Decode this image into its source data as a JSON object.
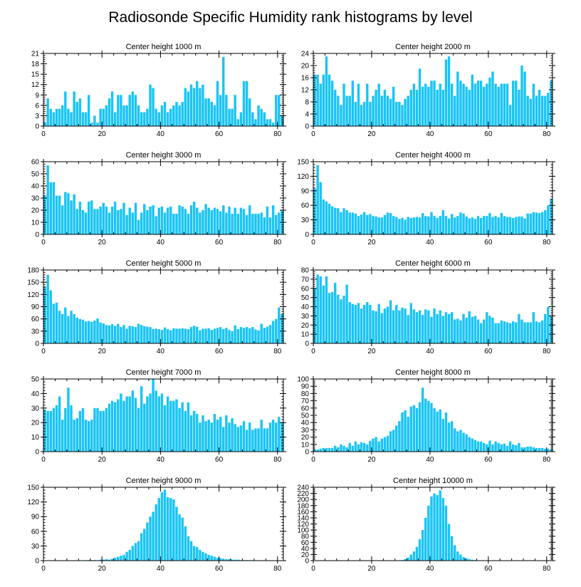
{
  "title": "Radiosonde Specific Humidity rank histograms by level",
  "bar_color": "#19c4f5",
  "chart_data": [
    {
      "type": "bar",
      "title": "Center height 1000 m",
      "xlim": [
        0,
        82
      ],
      "ylim": [
        0,
        21
      ],
      "xticks": [
        0,
        20,
        40,
        60,
        80
      ],
      "yticks": [
        0,
        3,
        6,
        9,
        12,
        15,
        18,
        21
      ],
      "values": [
        1,
        8,
        5,
        4,
        5,
        5,
        6,
        10,
        5,
        4,
        10,
        7,
        8,
        4,
        4,
        9,
        1,
        3,
        1,
        5,
        5,
        6,
        8,
        10,
        4,
        9,
        9,
        6,
        6,
        9,
        10,
        9,
        6,
        4,
        4,
        5,
        12,
        11,
        5,
        4,
        6,
        7,
        4,
        5,
        6,
        7,
        6,
        7,
        11,
        10,
        12,
        11,
        13,
        11,
        12,
        8,
        8,
        7,
        6,
        13,
        9,
        20,
        9,
        5,
        5,
        9,
        2,
        4,
        13,
        13,
        8,
        4,
        2,
        6,
        5,
        4,
        2,
        2,
        1,
        9,
        9,
        3
      ]
    },
    {
      "type": "bar",
      "title": "Center height 2000 m",
      "xlim": [
        0,
        82
      ],
      "ylim": [
        0,
        24
      ],
      "xticks": [
        0,
        20,
        40,
        60,
        80
      ],
      "yticks": [
        0,
        4,
        8,
        12,
        16,
        20,
        24
      ],
      "values": [
        17,
        17,
        14,
        17,
        23,
        17,
        15,
        12,
        10,
        7,
        14,
        10,
        10,
        15,
        8,
        14,
        7,
        8,
        14,
        8,
        10,
        12,
        14,
        10,
        12,
        10,
        9,
        13,
        8,
        8,
        7,
        9,
        10,
        12,
        14,
        12,
        19,
        13,
        14,
        13,
        15,
        15,
        12,
        14,
        12,
        22,
        23,
        14,
        10,
        18,
        15,
        14,
        13,
        12,
        17,
        14,
        15,
        15,
        13,
        14,
        16,
        18,
        14,
        13,
        14,
        14,
        14,
        7,
        15,
        15,
        12,
        20,
        18,
        10,
        9,
        14,
        10,
        12,
        10,
        10,
        11,
        15
      ]
    },
    {
      "type": "bar",
      "title": "Center height 3000 m",
      "xlim": [
        0,
        82
      ],
      "ylim": [
        0,
        60
      ],
      "xticks": [
        0,
        20,
        40,
        60,
        80
      ],
      "yticks": [
        0,
        10,
        20,
        30,
        40,
        50,
        60
      ],
      "values": [
        32,
        57,
        43,
        43,
        32,
        32,
        24,
        35,
        34,
        28,
        33,
        21,
        27,
        20,
        18,
        27,
        28,
        21,
        21,
        23,
        26,
        23,
        18,
        23,
        27,
        20,
        21,
        26,
        16,
        22,
        18,
        26,
        12,
        18,
        25,
        20,
        23,
        24,
        15,
        22,
        23,
        18,
        22,
        23,
        17,
        17,
        24,
        23,
        21,
        17,
        24,
        27,
        22,
        18,
        20,
        25,
        22,
        20,
        22,
        21,
        19,
        24,
        18,
        23,
        17,
        22,
        17,
        22,
        21,
        16,
        24,
        17,
        17,
        17,
        18,
        14,
        23,
        14,
        24,
        16,
        18,
        20
      ]
    },
    {
      "type": "bar",
      "title": "Center height 4000 m",
      "xlim": [
        0,
        82
      ],
      "ylim": [
        0,
        150
      ],
      "xticks": [
        0,
        20,
        40,
        60,
        80
      ],
      "yticks": [
        0,
        30,
        60,
        90,
        120,
        150
      ],
      "values": [
        95,
        143,
        108,
        72,
        68,
        63,
        58,
        55,
        54,
        46,
        54,
        50,
        45,
        45,
        43,
        38,
        41,
        46,
        40,
        42,
        38,
        37,
        35,
        35,
        40,
        45,
        44,
        38,
        36,
        32,
        34,
        30,
        36,
        34,
        35,
        36,
        35,
        44,
        38,
        37,
        46,
        38,
        34,
        38,
        50,
        38,
        33,
        42,
        35,
        38,
        45,
        43,
        37,
        33,
        35,
        32,
        38,
        34,
        38,
        38,
        44,
        36,
        38,
        35,
        44,
        38,
        36,
        36,
        34,
        36,
        37,
        37,
        33,
        43,
        43,
        46,
        45,
        44,
        46,
        50,
        60,
        74
      ]
    },
    {
      "type": "bar",
      "title": "Center height 5000 m",
      "xlim": [
        0,
        82
      ],
      "ylim": [
        0,
        180
      ],
      "xticks": [
        0,
        20,
        40,
        60,
        80
      ],
      "yticks": [
        0,
        30,
        60,
        90,
        120,
        150,
        180
      ],
      "values": [
        140,
        168,
        130,
        97,
        100,
        80,
        72,
        88,
        67,
        80,
        72,
        63,
        60,
        58,
        54,
        55,
        53,
        56,
        61,
        51,
        49,
        45,
        44,
        47,
        43,
        48,
        40,
        45,
        36,
        43,
        42,
        40,
        48,
        45,
        42,
        41,
        40,
        35,
        36,
        35,
        33,
        39,
        35,
        32,
        37,
        36,
        36,
        37,
        36,
        35,
        40,
        43,
        41,
        32,
        36,
        36,
        37,
        33,
        36,
        38,
        40,
        35,
        38,
        33,
        30,
        44,
        35,
        40,
        38,
        40,
        37,
        40,
        34,
        32,
        48,
        38,
        41,
        45,
        55,
        60,
        88,
        72
      ]
    },
    {
      "type": "bar",
      "title": "Center height 6000 m",
      "xlim": [
        0,
        82
      ],
      "ylim": [
        0,
        80
      ],
      "xticks": [
        0,
        20,
        40,
        60,
        80
      ],
      "yticks": [
        0,
        10,
        20,
        30,
        40,
        50,
        60,
        70,
        80
      ],
      "values": [
        60,
        75,
        73,
        63,
        73,
        55,
        56,
        66,
        53,
        48,
        52,
        64,
        45,
        43,
        42,
        44,
        38,
        42,
        45,
        42,
        36,
        35,
        43,
        33,
        38,
        40,
        47,
        36,
        42,
        36,
        39,
        38,
        31,
        44,
        37,
        34,
        36,
        31,
        37,
        36,
        29,
        38,
        32,
        36,
        30,
        34,
        32,
        34,
        26,
        27,
        25,
        32,
        28,
        35,
        29,
        30,
        26,
        22,
        26,
        34,
        30,
        28,
        22,
        22,
        25,
        24,
        23,
        22,
        24,
        23,
        32,
        26,
        23,
        23,
        23,
        34,
        24,
        23,
        25,
        32,
        40,
        30
      ]
    },
    {
      "type": "bar",
      "title": "Center height 7000 m",
      "xlim": [
        0,
        82
      ],
      "ylim": [
        0,
        50
      ],
      "xticks": [
        0,
        20,
        40,
        60,
        80
      ],
      "yticks": [
        0,
        10,
        20,
        30,
        40,
        50
      ],
      "values": [
        29,
        28,
        28,
        30,
        32,
        38,
        22,
        30,
        44,
        32,
        22,
        23,
        28,
        30,
        22,
        21,
        22,
        30,
        30,
        28,
        28,
        30,
        33,
        35,
        34,
        36,
        40,
        35,
        38,
        38,
        42,
        37,
        30,
        45,
        33,
        38,
        40,
        50,
        42,
        38,
        40,
        32,
        38,
        35,
        35,
        36,
        30,
        34,
        28,
        34,
        25,
        28,
        26,
        20,
        25,
        21,
        22,
        20,
        26,
        22,
        24,
        17,
        25,
        20,
        23,
        19,
        17,
        18,
        21,
        15,
        20,
        15,
        16,
        16,
        22,
        16,
        16,
        20,
        22,
        20,
        24,
        20
      ]
    },
    {
      "type": "bar",
      "title": "Center height 8000 m",
      "xlim": [
        0,
        82
      ],
      "ylim": [
        0,
        100
      ],
      "xticks": [
        0,
        20,
        40,
        60,
        80
      ],
      "yticks": [
        0,
        10,
        20,
        30,
        40,
        50,
        60,
        70,
        80,
        90,
        100
      ],
      "values": [
        3,
        3,
        4,
        5,
        5,
        5,
        5,
        8,
        6,
        10,
        8,
        6,
        12,
        8,
        14,
        10,
        13,
        12,
        10,
        15,
        18,
        20,
        14,
        18,
        20,
        22,
        28,
        30,
        36,
        42,
        54,
        57,
        48,
        62,
        64,
        60,
        68,
        88,
        73,
        70,
        67,
        60,
        55,
        58,
        45,
        54,
        40,
        42,
        32,
        28,
        30,
        26,
        24,
        20,
        18,
        16,
        14,
        14,
        12,
        10,
        15,
        10,
        14,
        12,
        10,
        11,
        8,
        14,
        10,
        9,
        12,
        6,
        6,
        7,
        7,
        6,
        5,
        5,
        5,
        4,
        4,
        3
      ]
    },
    {
      "type": "bar",
      "title": "Center height 9000 m",
      "xlim": [
        0,
        82
      ],
      "ylim": [
        0,
        150
      ],
      "xticks": [
        0,
        20,
        40,
        60,
        80
      ],
      "yticks": [
        0,
        30,
        60,
        90,
        120,
        150
      ],
      "values": [
        0,
        0,
        0,
        0,
        0,
        0,
        0,
        0,
        0,
        0,
        0,
        0,
        0,
        0,
        1,
        1,
        1,
        1,
        0,
        2,
        2,
        3,
        2,
        4,
        6,
        8,
        10,
        12,
        18,
        22,
        30,
        36,
        40,
        56,
        65,
        78,
        90,
        100,
        115,
        128,
        140,
        145,
        130,
        128,
        125,
        110,
        95,
        88,
        70,
        50,
        40,
        30,
        28,
        22,
        18,
        15,
        12,
        10,
        8,
        6,
        5,
        4,
        3,
        3,
        2,
        2,
        2,
        1,
        1,
        1,
        1,
        1,
        0,
        0,
        1,
        0,
        0,
        0,
        0,
        0,
        0,
        0
      ]
    },
    {
      "type": "bar",
      "title": "Center height 10000 m",
      "xlim": [
        0,
        82
      ],
      "ylim": [
        0,
        240
      ],
      "xticks": [
        0,
        20,
        40,
        60,
        80
      ],
      "yticks": [
        0,
        20,
        40,
        60,
        80,
        100,
        120,
        140,
        160,
        180,
        200,
        220,
        240
      ],
      "values": [
        0,
        0,
        0,
        0,
        0,
        0,
        0,
        0,
        0,
        0,
        0,
        0,
        0,
        0,
        0,
        0,
        0,
        0,
        0,
        0,
        0,
        0,
        0,
        0,
        0,
        0,
        0,
        0,
        0,
        1,
        2,
        5,
        10,
        20,
        30,
        45,
        70,
        100,
        140,
        180,
        210,
        220,
        215,
        230,
        205,
        180,
        120,
        80,
        50,
        30,
        20,
        12,
        8,
        5,
        3,
        2,
        1,
        1,
        0,
        0,
        0,
        0,
        0,
        0,
        0,
        0,
        0,
        0,
        0,
        0,
        0,
        0,
        0,
        0,
        0,
        0,
        0,
        0,
        0,
        0,
        0,
        0
      ]
    }
  ]
}
